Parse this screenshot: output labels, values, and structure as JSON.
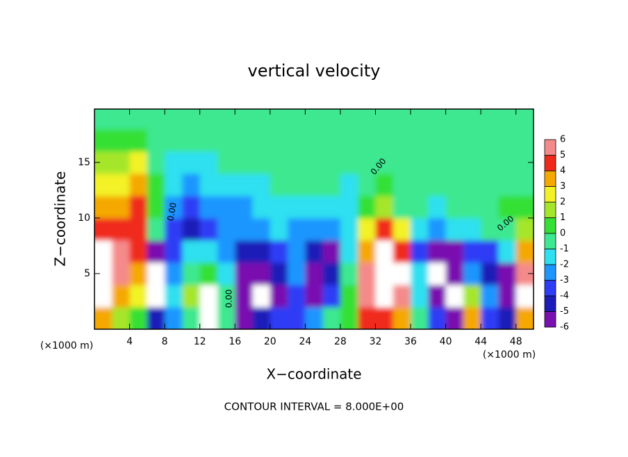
{
  "chart_data": {
    "type": "contour",
    "title": "vertical velocity",
    "x_label": "X−coordinate",
    "y_label": "Z−coordinate",
    "x_unit_label": "(×1000 m)",
    "footnote": "CONTOUR INTERVAL = 8.000E+00",
    "contour_label": "0.00",
    "xlim": [
      0,
      50
    ],
    "ylim": [
      0,
      19.8
    ],
    "xticks": [
      4,
      8,
      12,
      16,
      20,
      24,
      28,
      32,
      36,
      40,
      44,
      48
    ],
    "yticks": [
      5,
      10,
      15
    ],
    "x": [
      1,
      3,
      5,
      7,
      9,
      11,
      13,
      15,
      17,
      19,
      21,
      23,
      25,
      27,
      29,
      31,
      33,
      35,
      37,
      39,
      41,
      43,
      45,
      47,
      49
    ],
    "z_levels": [
      1,
      3,
      5,
      7,
      9,
      11,
      13,
      15,
      17,
      19
    ],
    "z": [
      [
        4,
        2,
        1,
        -4,
        -2,
        0,
        8,
        0,
        -5,
        -4,
        -3,
        -3,
        -2,
        0,
        1,
        5,
        5,
        4,
        0,
        -3,
        -5,
        4,
        -3,
        -4,
        4
      ],
      [
        8,
        4,
        3,
        -7,
        -1,
        2,
        8,
        0,
        -5,
        -7,
        -5,
        -3,
        -5,
        -3,
        1,
        6,
        9,
        6,
        -1,
        -6,
        -7,
        2,
        -2,
        -6,
        7
      ],
      [
        9,
        6,
        4,
        -7,
        -2,
        0,
        1,
        -1,
        -5,
        -5,
        -4,
        -2,
        -6,
        -4,
        0,
        6,
        9,
        7,
        -1,
        -7,
        -6,
        -2,
        -4,
        -5,
        6
      ],
      [
        7,
        6,
        5,
        -6,
        -3,
        -1,
        -1,
        -2,
        -4,
        -4,
        -3,
        -2,
        -4,
        -5,
        -1,
        4,
        8,
        5,
        -3,
        -5,
        -5,
        -3,
        -3,
        -1,
        4
      ],
      [
        5,
        5,
        5,
        0,
        -3,
        -4,
        -3,
        -2,
        -2,
        -2,
        -1,
        -2,
        -2,
        -2,
        -1,
        3,
        5,
        3,
        -1,
        -2,
        -1,
        -1,
        0,
        0,
        2
      ],
      [
        4,
        4,
        5,
        1,
        -2,
        -3,
        -2,
        -2,
        -2,
        -1,
        -1,
        -1,
        -1,
        -1,
        -1,
        1,
        2,
        0,
        0,
        -1,
        0,
        0,
        0,
        1,
        1
      ],
      [
        3,
        3,
        4,
        1,
        -1,
        -2,
        -1,
        -1,
        -1,
        -1,
        0,
        0,
        0,
        0,
        -1,
        0,
        1,
        0,
        0,
        0,
        0,
        0,
        0,
        0,
        0
      ],
      [
        2,
        2,
        3,
        0,
        -1,
        -1,
        -1,
        0,
        0,
        0,
        0,
        0,
        0,
        0,
        0,
        0,
        0,
        0,
        0,
        0,
        0,
        0,
        0,
        0,
        0
      ],
      [
        1,
        1,
        1,
        0,
        0,
        0,
        0,
        0,
        0,
        0,
        0,
        0,
        0,
        0,
        0,
        0,
        0,
        0,
        0,
        0,
        0,
        0,
        0,
        0,
        0
      ],
      [
        0,
        0,
        0,
        0,
        0,
        0,
        0,
        0,
        0,
        0,
        0,
        0,
        0,
        0,
        0,
        0,
        0,
        0,
        0,
        0,
        0,
        0,
        0,
        0,
        0
      ]
    ],
    "levels": [
      -6,
      -5,
      -4,
      -3,
      -2,
      -1,
      0,
      1,
      2,
      3,
      4,
      5,
      6
    ],
    "colors": [
      "#7a10b0",
      "#1c1cb8",
      "#2f3cf5",
      "#1e96ff",
      "#2ee0f0",
      "#3ce890",
      "#34e034",
      "#a6e62a",
      "#f2f226",
      "#f5a800",
      "#f02a1a",
      "#f58a8a"
    ],
    "out_of_range_color": "#ffffff"
  }
}
